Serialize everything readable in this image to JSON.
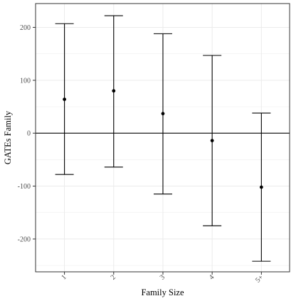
{
  "chart_data": {
    "type": "errorbar",
    "title": "",
    "xlabel": "Family Size",
    "ylabel": "GATEs Family",
    "categories": [
      "1",
      "2",
      "3",
      "4",
      "5+"
    ],
    "estimate": [
      64,
      80,
      37,
      -14,
      -102
    ],
    "ci_lower": [
      -78,
      -64,
      -115,
      -175,
      -242
    ],
    "ci_upper": [
      207,
      222,
      188,
      147,
      38
    ],
    "yticks": [
      -200,
      -100,
      0,
      100,
      200
    ],
    "ylim": [
      -262,
      245
    ],
    "reference_line": 0,
    "grid": true,
    "colors": {
      "mark": "#000000",
      "grid": "#ebebeb",
      "panel_border": "#333333"
    }
  }
}
